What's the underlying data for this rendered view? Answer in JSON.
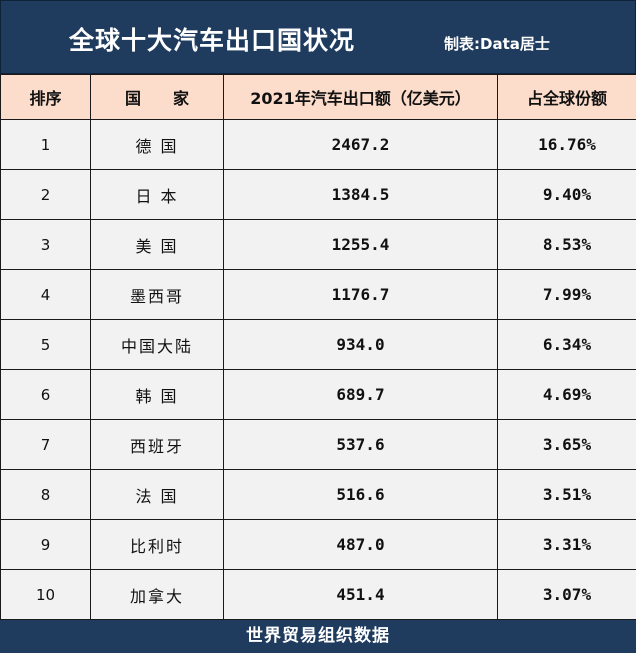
{
  "header": {
    "title": "全球十大汽车出口国状况",
    "credit": "制表:Data居士"
  },
  "table": {
    "columns": [
      "排序",
      "国　　家",
      "2021年汽车出口额（亿美元）",
      "占全球份额"
    ],
    "rows": [
      {
        "rank": "1",
        "country": "德 国",
        "value": "2467.2",
        "share": "16.76%"
      },
      {
        "rank": "2",
        "country": "日 本",
        "value": "1384.5",
        "share": "9.40%"
      },
      {
        "rank": "3",
        "country": "美 国",
        "value": "1255.4",
        "share": "8.53%"
      },
      {
        "rank": "4",
        "country": "墨西哥",
        "value": "1176.7",
        "share": "7.99%"
      },
      {
        "rank": "5",
        "country": "中国大陆",
        "value": "934.0",
        "share": "6.34%"
      },
      {
        "rank": "6",
        "country": "韩 国",
        "value": "689.7",
        "share": "4.69%"
      },
      {
        "rank": "7",
        "country": "西班牙",
        "value": "537.6",
        "share": "3.65%"
      },
      {
        "rank": "8",
        "country": "法 国",
        "value": "516.6",
        "share": "3.51%"
      },
      {
        "rank": "9",
        "country": "比利时",
        "value": "487.0",
        "share": "3.31%"
      },
      {
        "rank": "10",
        "country": "加拿大",
        "value": "451.4",
        "share": "3.07%"
      }
    ]
  },
  "footer": {
    "source": "世界贸易组织数据"
  },
  "colors": {
    "banner": "#1f3c5f",
    "header_row": "#fcdcca",
    "body_row": "#f2f2f2"
  }
}
